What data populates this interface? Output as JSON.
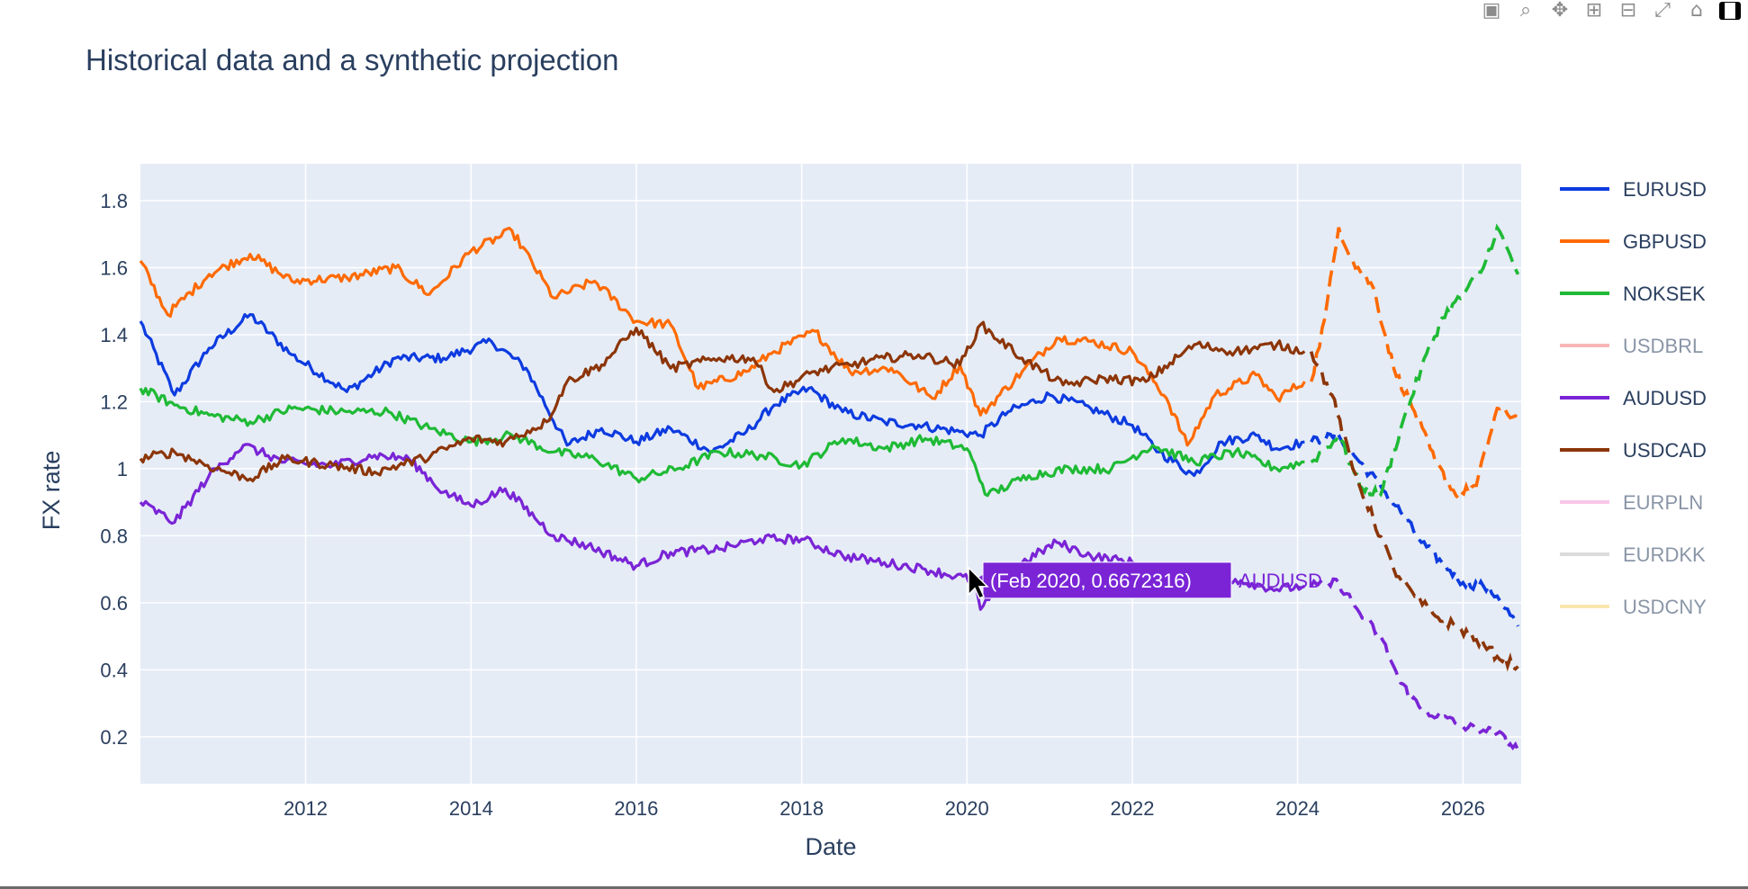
{
  "modebar": {
    "buttons": [
      {
        "name": "camera-icon",
        "glyph": "▣"
      },
      {
        "name": "zoom-icon",
        "glyph": "⌕"
      },
      {
        "name": "pan-icon",
        "glyph": "✥"
      },
      {
        "name": "zoom-in-icon",
        "glyph": "⊞"
      },
      {
        "name": "zoom-out-icon",
        "glyph": "⊟"
      },
      {
        "name": "autoscale-icon",
        "glyph": "⤢"
      },
      {
        "name": "home-icon",
        "glyph": "⌂"
      },
      {
        "name": "plotly-logo-icon",
        "glyph": "▐▌"
      }
    ]
  },
  "chart_data": {
    "type": "line",
    "title": "Historical data and a synthetic projection",
    "xlabel": "Date",
    "ylabel": "FX rate",
    "xlim": [
      "2010-01-01",
      "2026-09-15"
    ],
    "ylim": [
      0.06,
      1.91
    ],
    "x_ticks": [
      "2012",
      "2014",
      "2016",
      "2018",
      "2020",
      "2022",
      "2024",
      "2026"
    ],
    "y_ticks": [
      "0.2",
      "0.4",
      "0.6",
      "0.8",
      "1",
      "1.2",
      "1.4",
      "1.6",
      "1.8"
    ],
    "y_tick_values": [
      0.2,
      0.4,
      0.6,
      0.8,
      1.0,
      1.2,
      1.4,
      1.6,
      1.8
    ],
    "grid": true,
    "legend_position": "right",
    "background_color": "#e5ecf6",
    "projection_start": "2024-03-01",
    "series": [
      {
        "name": "EURUSD",
        "color": "#0d3be0",
        "visible": true,
        "historical": [
          [
            "2010-01-01",
            1.44
          ],
          [
            "2010-06-01",
            1.22
          ],
          [
            "2010-11-01",
            1.36
          ],
          [
            "2011-05-01",
            1.46
          ],
          [
            "2011-11-01",
            1.34
          ],
          [
            "2012-07-01",
            1.23
          ],
          [
            "2013-02-01",
            1.33
          ],
          [
            "2013-09-01",
            1.33
          ],
          [
            "2014-04-01",
            1.38
          ],
          [
            "2014-09-01",
            1.3
          ],
          [
            "2015-03-01",
            1.07
          ],
          [
            "2015-08-01",
            1.12
          ],
          [
            "2016-01-01",
            1.08
          ],
          [
            "2016-06-01",
            1.12
          ],
          [
            "2016-12-01",
            1.05
          ],
          [
            "2017-05-01",
            1.11
          ],
          [
            "2017-09-01",
            1.19
          ],
          [
            "2018-02-01",
            1.24
          ],
          [
            "2018-07-01",
            1.17
          ],
          [
            "2019-01-01",
            1.14
          ],
          [
            "2019-06-01",
            1.13
          ],
          [
            "2019-12-01",
            1.11
          ],
          [
            "2020-03-01",
            1.1
          ],
          [
            "2020-07-01",
            1.17
          ],
          [
            "2021-01-01",
            1.22
          ],
          [
            "2021-07-01",
            1.18
          ],
          [
            "2022-01-01",
            1.13
          ],
          [
            "2022-05-01",
            1.05
          ],
          [
            "2022-10-01",
            0.98
          ],
          [
            "2023-02-01",
            1.08
          ],
          [
            "2023-07-01",
            1.1
          ],
          [
            "2023-10-01",
            1.06
          ],
          [
            "2024-02-01",
            1.08
          ]
        ],
        "projection": [
          [
            "2024-03-01",
            1.08
          ],
          [
            "2024-07-01",
            1.1
          ],
          [
            "2024-10-01",
            1.02
          ],
          [
            "2025-01-01",
            0.95
          ],
          [
            "2025-04-01",
            0.87
          ],
          [
            "2025-07-01",
            0.78
          ],
          [
            "2025-10-01",
            0.72
          ],
          [
            "2026-01-01",
            0.66
          ],
          [
            "2026-04-01",
            0.65
          ],
          [
            "2026-06-01",
            0.62
          ],
          [
            "2026-09-01",
            0.53
          ]
        ]
      },
      {
        "name": "GBPUSD",
        "color": "#ff6a00",
        "visible": true,
        "historical": [
          [
            "2010-01-01",
            1.62
          ],
          [
            "2010-05-01",
            1.46
          ],
          [
            "2010-11-01",
            1.58
          ],
          [
            "2011-05-01",
            1.64
          ],
          [
            "2011-11-01",
            1.56
          ],
          [
            "2012-07-01",
            1.57
          ],
          [
            "2013-02-01",
            1.6
          ],
          [
            "2013-07-01",
            1.52
          ],
          [
            "2014-01-01",
            1.65
          ],
          [
            "2014-07-01",
            1.71
          ],
          [
            "2015-01-01",
            1.51
          ],
          [
            "2015-07-01",
            1.56
          ],
          [
            "2016-01-01",
            1.44
          ],
          [
            "2016-06-01",
            1.43
          ],
          [
            "2016-10-01",
            1.24
          ],
          [
            "2017-05-01",
            1.29
          ],
          [
            "2017-09-01",
            1.35
          ],
          [
            "2018-03-01",
            1.41
          ],
          [
            "2018-08-01",
            1.29
          ],
          [
            "2019-02-01",
            1.3
          ],
          [
            "2019-08-01",
            1.21
          ],
          [
            "2019-12-01",
            1.31
          ],
          [
            "2020-03-01",
            1.16
          ],
          [
            "2020-09-01",
            1.29
          ],
          [
            "2021-02-01",
            1.39
          ],
          [
            "2021-07-01",
            1.38
          ],
          [
            "2022-01-01",
            1.35
          ],
          [
            "2022-06-01",
            1.21
          ],
          [
            "2022-09-01",
            1.07
          ],
          [
            "2023-01-01",
            1.22
          ],
          [
            "2023-07-01",
            1.28
          ],
          [
            "2023-10-01",
            1.21
          ],
          [
            "2024-02-01",
            1.26
          ]
        ],
        "projection": [
          [
            "2024-03-01",
            1.26
          ],
          [
            "2024-05-01",
            1.45
          ],
          [
            "2024-07-01",
            1.72
          ],
          [
            "2024-09-01",
            1.62
          ],
          [
            "2024-12-01",
            1.54
          ],
          [
            "2025-03-01",
            1.3
          ],
          [
            "2025-06-01",
            1.17
          ],
          [
            "2025-09-01",
            1.02
          ],
          [
            "2025-12-01",
            0.92
          ],
          [
            "2026-03-01",
            0.95
          ],
          [
            "2026-06-01",
            1.18
          ],
          [
            "2026-09-01",
            1.15
          ]
        ]
      },
      {
        "name": "NOKSEK",
        "color": "#1fba35",
        "visible": true,
        "historical": [
          [
            "2010-01-01",
            1.24
          ],
          [
            "2010-06-01",
            1.19
          ],
          [
            "2010-11-01",
            1.16
          ],
          [
            "2011-05-01",
            1.14
          ],
          [
            "2011-11-01",
            1.18
          ],
          [
            "2012-07-01",
            1.17
          ],
          [
            "2013-01-01",
            1.17
          ],
          [
            "2013-07-01",
            1.12
          ],
          [
            "2014-01-01",
            1.08
          ],
          [
            "2014-07-01",
            1.1
          ],
          [
            "2015-01-01",
            1.05
          ],
          [
            "2015-07-01",
            1.03
          ],
          [
            "2016-01-01",
            0.97
          ],
          [
            "2016-07-01",
            1.0
          ],
          [
            "2017-01-01",
            1.05
          ],
          [
            "2017-07-01",
            1.04
          ],
          [
            "2018-01-01",
            1.01
          ],
          [
            "2018-07-01",
            1.09
          ],
          [
            "2019-01-01",
            1.06
          ],
          [
            "2019-07-01",
            1.09
          ],
          [
            "2020-01-01",
            1.06
          ],
          [
            "2020-04-01",
            0.92
          ],
          [
            "2020-10-01",
            0.98
          ],
          [
            "2021-04-01",
            1.0
          ],
          [
            "2021-10-01",
            1.0
          ],
          [
            "2022-04-01",
            1.07
          ],
          [
            "2022-10-01",
            1.02
          ],
          [
            "2023-04-01",
            1.05
          ],
          [
            "2023-10-01",
            1.0
          ],
          [
            "2024-02-01",
            1.02
          ]
        ],
        "projection": [
          [
            "2024-03-01",
            1.02
          ],
          [
            "2024-07-01",
            1.1
          ],
          [
            "2024-10-01",
            0.95
          ],
          [
            "2025-01-01",
            0.92
          ],
          [
            "2025-04-01",
            1.12
          ],
          [
            "2025-07-01",
            1.3
          ],
          [
            "2025-10-01",
            1.45
          ],
          [
            "2026-01-01",
            1.52
          ],
          [
            "2026-04-01",
            1.6
          ],
          [
            "2026-06-01",
            1.72
          ],
          [
            "2026-09-01",
            1.58
          ]
        ]
      },
      {
        "name": "USDBRL",
        "color": "#f47c7c",
        "visible": false
      },
      {
        "name": "AUDUSD",
        "color": "#7a24d6",
        "visible": true,
        "historical": [
          [
            "2010-01-01",
            0.9
          ],
          [
            "2010-06-01",
            0.84
          ],
          [
            "2010-11-01",
            0.98
          ],
          [
            "2011-04-01",
            1.07
          ],
          [
            "2011-10-01",
            1.02
          ],
          [
            "2012-05-01",
            1.01
          ],
          [
            "2012-11-01",
            1.04
          ],
          [
            "2013-04-01",
            1.03
          ],
          [
            "2013-09-01",
            0.93
          ],
          [
            "2014-01-01",
            0.89
          ],
          [
            "2014-06-01",
            0.94
          ],
          [
            "2015-01-01",
            0.8
          ],
          [
            "2015-06-01",
            0.77
          ],
          [
            "2016-01-01",
            0.71
          ],
          [
            "2016-06-01",
            0.75
          ],
          [
            "2017-01-01",
            0.76
          ],
          [
            "2017-07-01",
            0.79
          ],
          [
            "2018-01-01",
            0.79
          ],
          [
            "2018-07-01",
            0.74
          ],
          [
            "2019-01-01",
            0.72
          ],
          [
            "2019-07-01",
            0.7
          ],
          [
            "2020-02-01",
            0.6672316
          ],
          [
            "2020-03-01",
            0.58
          ],
          [
            "2020-09-01",
            0.72
          ],
          [
            "2021-02-01",
            0.78
          ],
          [
            "2021-07-01",
            0.74
          ],
          [
            "2022-01-01",
            0.72
          ],
          [
            "2022-06-01",
            0.69
          ],
          [
            "2022-10-01",
            0.64
          ],
          [
            "2023-04-01",
            0.67
          ],
          [
            "2023-10-01",
            0.64
          ],
          [
            "2024-02-01",
            0.65
          ]
        ],
        "projection": [
          [
            "2024-03-01",
            0.65
          ],
          [
            "2024-07-01",
            0.66
          ],
          [
            "2024-10-01",
            0.57
          ],
          [
            "2025-01-01",
            0.5
          ],
          [
            "2025-04-01",
            0.36
          ],
          [
            "2025-07-01",
            0.28
          ],
          [
            "2025-10-01",
            0.26
          ],
          [
            "2026-01-01",
            0.23
          ],
          [
            "2026-04-01",
            0.22
          ],
          [
            "2026-06-01",
            0.21
          ],
          [
            "2026-09-01",
            0.16
          ]
        ]
      },
      {
        "name": "USDCAD",
        "color": "#8c3508",
        "visible": true,
        "historical": [
          [
            "2010-01-01",
            1.03
          ],
          [
            "2010-06-01",
            1.05
          ],
          [
            "2010-12-01",
            1.0
          ],
          [
            "2011-05-01",
            0.97
          ],
          [
            "2011-10-01",
            1.03
          ],
          [
            "2012-05-01",
            1.01
          ],
          [
            "2012-11-01",
            0.99
          ],
          [
            "2013-06-01",
            1.03
          ],
          [
            "2014-01-01",
            1.09
          ],
          [
            "2014-06-01",
            1.08
          ],
          [
            "2014-12-01",
            1.14
          ],
          [
            "2015-03-01",
            1.26
          ],
          [
            "2015-08-01",
            1.31
          ],
          [
            "2016-01-01",
            1.42
          ],
          [
            "2016-06-01",
            1.3
          ],
          [
            "2017-01-01",
            1.33
          ],
          [
            "2017-06-01",
            1.33
          ],
          [
            "2017-09-01",
            1.23
          ],
          [
            "2018-03-01",
            1.29
          ],
          [
            "2018-08-01",
            1.31
          ],
          [
            "2019-01-01",
            1.33
          ],
          [
            "2019-06-01",
            1.34
          ],
          [
            "2019-12-01",
            1.31
          ],
          [
            "2020-03-01",
            1.43
          ],
          [
            "2020-09-01",
            1.33
          ],
          [
            "2021-03-01",
            1.25
          ],
          [
            "2021-09-01",
            1.27
          ],
          [
            "2022-03-01",
            1.26
          ],
          [
            "2022-10-01",
            1.37
          ],
          [
            "2023-04-01",
            1.35
          ],
          [
            "2023-10-01",
            1.37
          ],
          [
            "2024-02-01",
            1.35
          ]
        ],
        "projection": [
          [
            "2024-03-01",
            1.35
          ],
          [
            "2024-06-01",
            1.22
          ],
          [
            "2024-09-01",
            1.0
          ],
          [
            "2024-12-01",
            0.85
          ],
          [
            "2025-03-01",
            0.7
          ],
          [
            "2025-06-01",
            0.62
          ],
          [
            "2025-09-01",
            0.56
          ],
          [
            "2025-12-01",
            0.53
          ],
          [
            "2026-03-01",
            0.49
          ],
          [
            "2026-06-01",
            0.44
          ],
          [
            "2026-09-01",
            0.41
          ]
        ]
      },
      {
        "name": "EURPLN",
        "color": "#f59ad6",
        "visible": false
      },
      {
        "name": "EURDKK",
        "color": "#bfbfbf",
        "visible": false
      },
      {
        "name": "USDCNY",
        "color": "#f7d36b",
        "visible": false
      }
    ]
  },
  "hover": {
    "label": "(Feb 2020, 0.6672316)",
    "series_name": "AUDUSD",
    "x": "2020-02-01",
    "y": 0.6672316
  }
}
